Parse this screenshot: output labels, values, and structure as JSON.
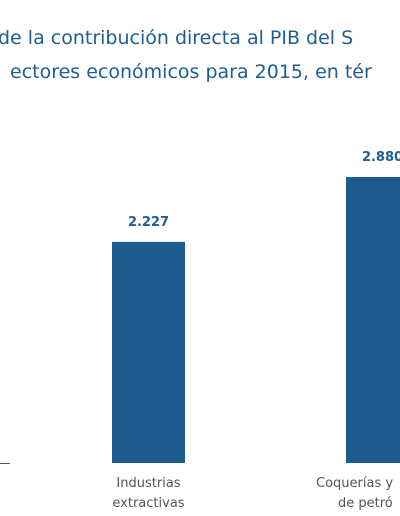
{
  "chart_data": {
    "type": "bar",
    "title_lines": [
      "de la contribución directa al PIB del S",
      "ectores económicos para 2015, en tér"
    ],
    "categories": [
      [
        "Industrias",
        "extractivas"
      ],
      [
        "Coquerías y",
        "de petró"
      ]
    ],
    "values": [
      2227,
      2880
    ],
    "value_labels": [
      "2.227",
      "2.880"
    ],
    "color": "#1d5a8e"
  }
}
